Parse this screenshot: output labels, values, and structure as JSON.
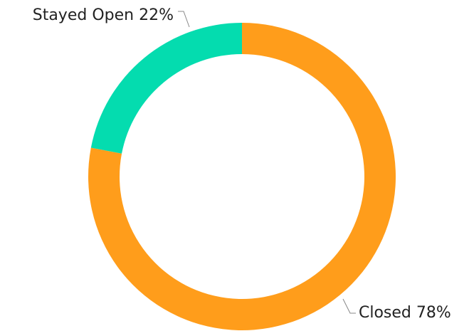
{
  "chart_data": {
    "type": "donut",
    "categories": [
      "Closed",
      "Stayed Open"
    ],
    "values": [
      78,
      22
    ],
    "value_labels": [
      "78%",
      "22%"
    ],
    "colors": [
      "#ff9d1b",
      "#04dcaf"
    ]
  }
}
